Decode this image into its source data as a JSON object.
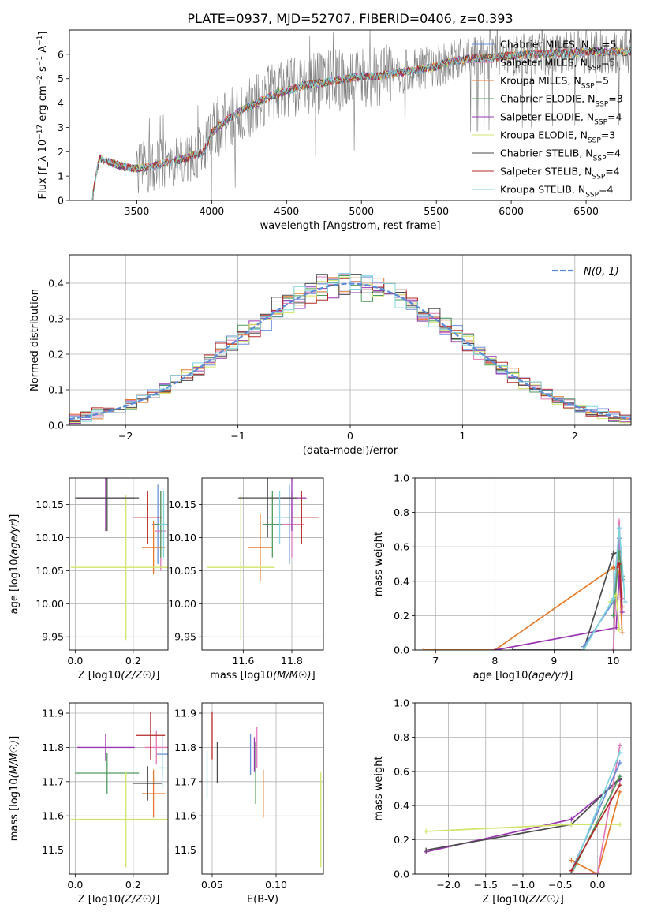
{
  "title": "PLATE=0937, MJD=52707, FIBERID=0406, z=0.393",
  "colors": {
    "Chabrier MILES": "#6a8fd8",
    "Salpeter MILES": "#e27ab8",
    "Kroupa MILES": "#e8792a",
    "Chabrier ELODIE": "#4f9a5e",
    "Salpeter ELODIE": "#9a35b0",
    "Kroupa ELODIE": "#d2e56a",
    "Chabrier STELIB": "#4a4a4a",
    "Salpeter STELIB": "#b52828",
    "Kroupa STELIB": "#7fd3de",
    "data": "#808080",
    "normal": "#5a8ad8"
  },
  "chart_data": [
    {
      "type": "line",
      "panel": "spectrum",
      "xlabel": "wavelength [Angstrom, rest frame]",
      "ylabel": "Flux [f_λ 10^-17 erg cm^-2 s^-1 A^-1]",
      "xlim": [
        3050,
        6800
      ],
      "ylim": [
        0,
        7
      ],
      "xticks": [
        3500,
        4000,
        4500,
        5000,
        5500,
        6000,
        6500
      ],
      "yticks": [
        0,
        1,
        2,
        3,
        4,
        5,
        6
      ],
      "legend": "top-right",
      "legend_entries": [
        "Chabrier MILES, N_SSP=5",
        "Salpeter MILES, N_SSP=5",
        "Kroupa MILES, N_SSP=5",
        "Chabrier ELODIE, N_SSP=3",
        "Salpeter ELODIE, N_SSP=4",
        "Kroupa ELODIE, N_SSP=3",
        "Chabrier STELIB, N_SSP=4",
        "Salpeter STELIB, N_SSP=4",
        "Kroupa STELIB, N_SSP=4"
      ],
      "model_continuum": {
        "x": [
          3200,
          3250,
          3300,
          3400,
          3500,
          3600,
          3700,
          3800,
          3900,
          3950,
          4000,
          4100,
          4200,
          4300,
          4400,
          4500,
          4600,
          4700,
          4800,
          4900,
          5000,
          5100,
          5200,
          5300,
          5400,
          5500,
          5600,
          5700,
          5800,
          5900,
          6000,
          6100,
          6200,
          6300,
          6400,
          6500,
          6600
        ],
        "y": [
          0.0,
          1.75,
          1.6,
          1.4,
          1.3,
          1.4,
          1.55,
          1.7,
          1.9,
          2.0,
          2.8,
          3.3,
          3.7,
          4.0,
          4.3,
          4.5,
          4.7,
          4.8,
          4.9,
          5.0,
          5.1,
          5.1,
          5.2,
          5.3,
          5.4,
          5.5,
          5.7,
          5.8,
          5.85,
          5.9,
          5.95,
          6.0,
          6.0,
          6.05,
          6.05,
          6.1,
          6.1
        ]
      }
    },
    {
      "type": "bar",
      "panel": "residuals",
      "xlabel": "(data-model)/error",
      "ylabel": "Normed distribution",
      "xlim": [
        -2.5,
        2.5
      ],
      "ylim": [
        0,
        0.48
      ],
      "xticks": [
        -2,
        -1,
        0,
        1,
        2
      ],
      "yticks": [
        0.0,
        0.1,
        0.2,
        0.3,
        0.4
      ],
      "legend": "top-right",
      "legend_entries": [
        "N(0,1)"
      ],
      "bin_width": 0.1,
      "grid": true
    },
    {
      "type": "scatter",
      "panel": "age-vs-Z",
      "xlabel": "Z [log10(Z/Z☉)]",
      "ylabel": "age [log10(age/yr)]",
      "xlim": [
        -0.02,
        0.32
      ],
      "ylim": [
        9.93,
        10.19
      ],
      "xticks": [
        0.0,
        0.2
      ],
      "yticks": [
        9.95,
        10.0,
        10.05,
        10.1,
        10.15
      ],
      "points": [
        {
          "model": "Chabrier MILES",
          "x": 0.285,
          "y": 10.12,
          "xerr": 0.02,
          "yerr": 0.06
        },
        {
          "model": "Salpeter MILES",
          "x": 0.295,
          "y": 10.11,
          "xerr": 0.02,
          "yerr": 0.06
        },
        {
          "model": "Kroupa MILES",
          "x": 0.27,
          "y": 10.085,
          "xerr": 0.04,
          "yerr": 0.04
        },
        {
          "model": "Chabrier ELODIE",
          "x": 0.295,
          "y": 10.12,
          "xerr": 0.02,
          "yerr": 0.05
        },
        {
          "model": "Salpeter ELODIE",
          "x": 0.105,
          "y": 10.16,
          "xerr": 0.1,
          "yerr": 0.05
        },
        {
          "model": "Kroupa ELODIE",
          "x": 0.175,
          "y": 10.055,
          "xerr": 0.19,
          "yerr": 0.11
        },
        {
          "model": "Chabrier STELIB",
          "x": 0.11,
          "y": 10.16,
          "xerr": 0.11,
          "yerr": 0.05
        },
        {
          "model": "Salpeter STELIB",
          "x": 0.25,
          "y": 10.13,
          "xerr": 0.05,
          "yerr": 0.04
        },
        {
          "model": "Kroupa STELIB",
          "x": 0.305,
          "y": 10.12,
          "xerr": 0.015,
          "yerr": 0.05
        }
      ]
    },
    {
      "type": "scatter",
      "panel": "age-vs-mass",
      "xlabel": "mass [log10(M/M☉)]",
      "ylabel": "",
      "xlim": [
        11.43,
        11.93
      ],
      "ylim": [
        9.93,
        10.19
      ],
      "xticks": [
        11.6,
        11.8
      ],
      "yticks": [
        9.95,
        10.0,
        10.05,
        10.1,
        10.15
      ],
      "points": [
        {
          "model": "Chabrier MILES",
          "x": 11.79,
          "y": 10.12,
          "xerr": 0.05,
          "yerr": 0.06
        },
        {
          "model": "Salpeter MILES",
          "x": 11.8,
          "y": 10.12,
          "xerr": 0.05,
          "yerr": 0.05
        },
        {
          "model": "Kroupa MILES",
          "x": 11.67,
          "y": 10.085,
          "xerr": 0.05,
          "yerr": 0.05
        },
        {
          "model": "Chabrier ELODIE",
          "x": 11.72,
          "y": 10.12,
          "xerr": 0.04,
          "yerr": 0.05
        },
        {
          "model": "Salpeter ELODIE",
          "x": 11.8,
          "y": 10.16,
          "xerr": 0.06,
          "yerr": 0.05
        },
        {
          "model": "Kroupa ELODIE",
          "x": 11.59,
          "y": 10.055,
          "xerr": 0.14,
          "yerr": 0.11
        },
        {
          "model": "Chabrier STELIB",
          "x": 11.7,
          "y": 10.16,
          "xerr": 0.12,
          "yerr": 0.06
        },
        {
          "model": "Salpeter STELIB",
          "x": 11.84,
          "y": 10.13,
          "xerr": 0.07,
          "yerr": 0.04
        },
        {
          "model": "Kroupa STELIB",
          "x": 11.75,
          "y": 10.13,
          "xerr": 0.05,
          "yerr": 0.04
        }
      ]
    },
    {
      "type": "line",
      "panel": "weight-vs-age",
      "xlabel": "age [log10(age/yr)]",
      "ylabel": "mass weight",
      "xlim": [
        6.65,
        10.3
      ],
      "ylim": [
        0,
        1.0
      ],
      "xticks": [
        7,
        8,
        9,
        10
      ],
      "yticks": [
        0.0,
        0.2,
        0.4,
        0.6,
        0.8,
        1.0
      ],
      "series": [
        {
          "model": "Kroupa MILES",
          "x": [
            6.8,
            8.0,
            10.0,
            10.1,
            10.15
          ],
          "y": [
            0.0,
            0.0,
            0.48,
            0.45,
            0.1
          ]
        },
        {
          "model": "Salpeter ELODIE",
          "x": [
            8.0,
            10.05,
            10.1,
            10.15
          ],
          "y": [
            0.0,
            0.13,
            0.43,
            0.22
          ]
        },
        {
          "model": "Chabrier STELIB",
          "x": [
            8.3,
            9.5,
            10.0,
            10.1,
            10.15
          ],
          "y": [
            0.0,
            0.0,
            0.56,
            0.57,
            0.41
          ]
        },
        {
          "model": "Chabrier MILES",
          "x": [
            9.5,
            10.0,
            10.1,
            10.15
          ],
          "y": [
            0.02,
            0.28,
            0.65,
            0.3
          ]
        },
        {
          "model": "Salpeter MILES",
          "x": [
            10.0,
            10.1,
            10.15
          ],
          "y": [
            0.0,
            0.75,
            0.3
          ]
        },
        {
          "model": "Chabrier ELODIE",
          "x": [
            10.0,
            10.1,
            10.15
          ],
          "y": [
            0.2,
            0.57,
            0.43
          ]
        },
        {
          "model": "Kroupa ELODIE",
          "x": [
            9.95,
            10.05,
            10.1
          ],
          "y": [
            0.28,
            0.32,
            0.12
          ]
        },
        {
          "model": "Salpeter STELIB",
          "x": [
            10.05,
            10.1,
            10.15
          ],
          "y": [
            0.48,
            0.5,
            0.25
          ]
        },
        {
          "model": "Kroupa STELIB",
          "x": [
            9.5,
            10.0,
            10.1,
            10.2
          ],
          "y": [
            0.0,
            0.3,
            0.71,
            0.28
          ]
        }
      ]
    },
    {
      "type": "scatter",
      "panel": "mass-vs-Z",
      "xlabel": "Z [log10(Z/Z☉)]",
      "ylabel": "mass [log10(M/M☉)]",
      "xlim": [
        -0.02,
        0.32
      ],
      "ylim": [
        11.43,
        11.93
      ],
      "xticks": [
        0.0,
        0.2
      ],
      "yticks": [
        11.5,
        11.6,
        11.7,
        11.8,
        11.9
      ],
      "points": [
        {
          "model": "Chabrier MILES",
          "x": 0.3,
          "y": 11.78,
          "xerr": 0.02,
          "yerr": 0.06
        },
        {
          "model": "Salpeter MILES",
          "x": 0.28,
          "y": 11.8,
          "xerr": 0.04,
          "yerr": 0.05
        },
        {
          "model": "Kroupa MILES",
          "x": 0.27,
          "y": 11.665,
          "xerr": 0.04,
          "yerr": 0.07
        },
        {
          "model": "Chabrier ELODIE",
          "x": 0.11,
          "y": 11.725,
          "xerr": 0.11,
          "yerr": 0.06
        },
        {
          "model": "Salpeter ELODIE",
          "x": 0.105,
          "y": 11.8,
          "xerr": 0.1,
          "yerr": 0.04
        },
        {
          "model": "Kroupa ELODIE",
          "x": 0.175,
          "y": 11.59,
          "xerr": 0.19,
          "yerr": 0.14
        },
        {
          "model": "Chabrier STELIB",
          "x": 0.25,
          "y": 11.695,
          "xerr": 0.05,
          "yerr": 0.05
        },
        {
          "model": "Salpeter STELIB",
          "x": 0.26,
          "y": 11.835,
          "xerr": 0.05,
          "yerr": 0.07
        },
        {
          "model": "Kroupa STELIB",
          "x": 0.3,
          "y": 11.74,
          "xerr": 0.015,
          "yerr": 0.06
        }
      ]
    },
    {
      "type": "scatter",
      "panel": "mass-vs-EBV",
      "xlabel": "E(B-V)",
      "ylabel": "",
      "xlim": [
        0.042,
        0.137
      ],
      "ylim": [
        11.43,
        11.93
      ],
      "xticks": [
        0.05,
        0.1
      ],
      "yticks": [
        11.5,
        11.6,
        11.7,
        11.8,
        11.9
      ],
      "points": [
        {
          "model": "Chabrier MILES",
          "x": 0.08,
          "y": 11.78,
          "yerr": 0.06
        },
        {
          "model": "Salpeter MILES",
          "x": 0.085,
          "y": 11.8,
          "yerr": 0.06
        },
        {
          "model": "Kroupa MILES",
          "x": 0.09,
          "y": 11.665,
          "yerr": 0.07
        },
        {
          "model": "Chabrier ELODIE",
          "x": 0.084,
          "y": 11.725,
          "yerr": 0.09
        },
        {
          "model": "Salpeter ELODIE",
          "x": 0.083,
          "y": 11.78,
          "yerr": 0.05
        },
        {
          "model": "Kroupa ELODIE",
          "x": 0.135,
          "y": 11.59,
          "yerr": 0.14
        },
        {
          "model": "Chabrier STELIB",
          "x": 0.054,
          "y": 11.755,
          "yerr": 0.06
        },
        {
          "model": "Salpeter STELIB",
          "x": 0.05,
          "y": 11.835,
          "yerr": 0.07
        },
        {
          "model": "Kroupa STELIB",
          "x": 0.046,
          "y": 11.72,
          "yerr": 0.07
        }
      ]
    },
    {
      "type": "line",
      "panel": "weight-vs-Z",
      "xlabel": "Z [log10(Z/Z☉)]",
      "ylabel": "mass weight",
      "xlim": [
        -2.45,
        0.45
      ],
      "ylim": [
        0,
        1.0
      ],
      "xticks": [
        -2.0,
        -1.5,
        -1.0,
        -0.5,
        0.0
      ],
      "yticks": [
        0.0,
        0.2,
        0.4,
        0.6,
        0.8,
        1.0
      ],
      "series": [
        {
          "model": "Salpeter ELODIE",
          "x": [
            -2.3,
            -0.35,
            0.3
          ],
          "y": [
            0.13,
            0.32,
            0.55
          ]
        },
        {
          "model": "Chabrier STELIB",
          "x": [
            -2.3,
            -0.35,
            0.3
          ],
          "y": [
            0.14,
            0.29,
            0.56
          ]
        },
        {
          "model": "Kroupa ELODIE",
          "x": [
            -2.3,
            -0.35,
            0.3
          ],
          "y": [
            0.25,
            0.29,
            0.29
          ]
        },
        {
          "model": "Kroupa MILES",
          "x": [
            -0.35,
            0.0,
            0.3
          ],
          "y": [
            0.08,
            0.0,
            0.48
          ]
        },
        {
          "model": "Salpeter MILES",
          "x": [
            -0.35,
            0.0,
            0.3
          ],
          "y": [
            0.0,
            0.0,
            0.75
          ]
        },
        {
          "model": "Chabrier MILES",
          "x": [
            -0.35,
            0.3
          ],
          "y": [
            0.02,
            0.65
          ]
        },
        {
          "model": "Chabrier ELODIE",
          "x": [
            -0.35,
            0.3
          ],
          "y": [
            0.0,
            0.57
          ]
        },
        {
          "model": "Kroupa STELIB",
          "x": [
            -0.35,
            0.3
          ],
          "y": [
            0.0,
            0.71
          ]
        },
        {
          "model": "Salpeter STELIB",
          "x": [
            -0.35,
            0.3
          ],
          "y": [
            0.02,
            0.52
          ]
        }
      ]
    }
  ]
}
